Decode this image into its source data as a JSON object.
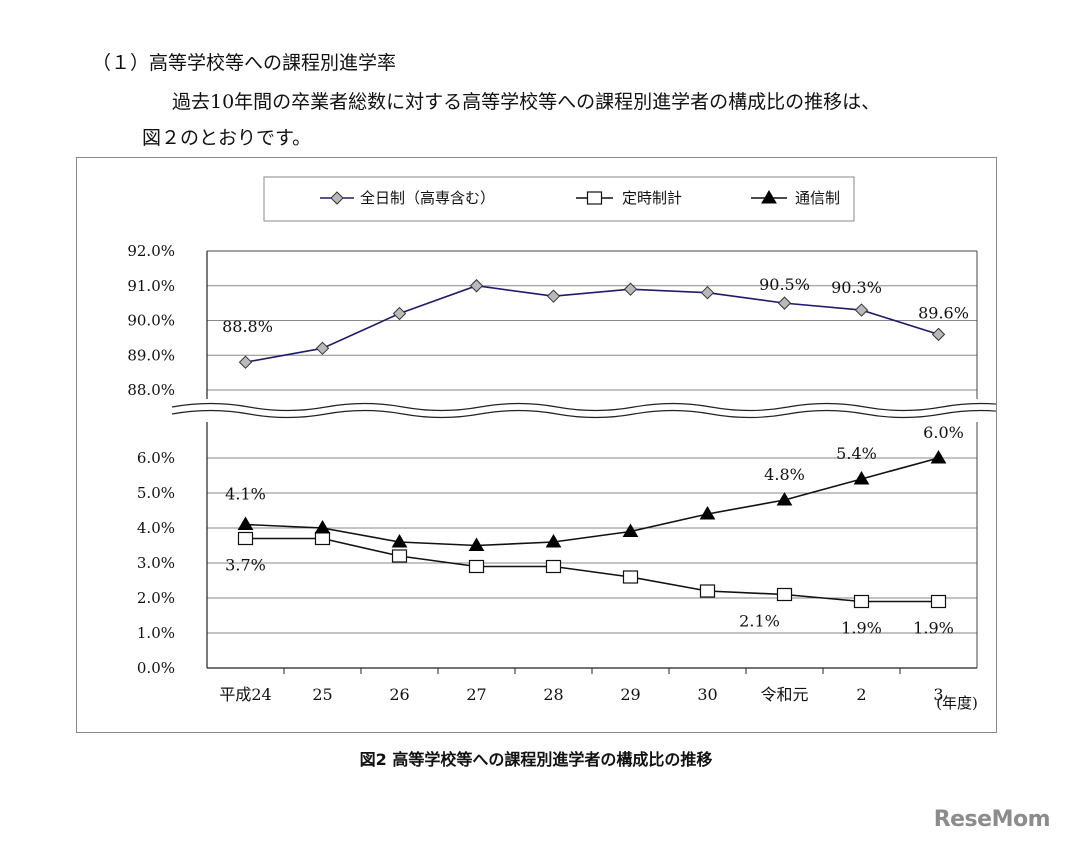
{
  "heading": "（１）高等学校等への課程別進学率",
  "intro_line1": "過去10年間の卒業者総数に対する高等学校等への課程別進学者の構成比の推移は、",
  "intro_line2": "図２のとおりです。",
  "caption": "図2  高等学校等への課程別進学者の構成比の推移",
  "watermark": "ReseMom",
  "chart_data": {
    "type": "line",
    "categories": [
      "平成24",
      "25",
      "26",
      "27",
      "28",
      "29",
      "30",
      "令和元",
      "2",
      "3"
    ],
    "x_unit_label": "(年度)",
    "axis_break": true,
    "upper_axis": {
      "ylim": [
        88.0,
        92.0
      ],
      "ticks": [
        "92.0%",
        "91.0%",
        "90.0%",
        "89.0%",
        "88.0%"
      ],
      "tick_values": [
        92,
        91,
        90,
        89,
        88
      ]
    },
    "lower_axis": {
      "ylim": [
        0.0,
        6.0
      ],
      "ticks": [
        "6.0%",
        "5.0%",
        "4.0%",
        "3.0%",
        "2.0%",
        "1.0%",
        "0.0%"
      ],
      "tick_values": [
        6,
        5,
        4,
        3,
        2,
        1,
        0
      ]
    },
    "grid": true,
    "legend_position": "top-center",
    "series": [
      {
        "name": "全日制（高専含む）",
        "axis": "upper",
        "marker": "diamond",
        "color": "#1f1a6e",
        "values": [
          88.8,
          89.2,
          90.2,
          91.0,
          90.7,
          90.9,
          90.8,
          90.5,
          90.3,
          89.6
        ],
        "data_labels": [
          {
            "index": 0,
            "text": "88.8%"
          },
          {
            "index": 7,
            "text": "90.5%"
          },
          {
            "index": 8,
            "text": "90.3%"
          },
          {
            "index": 9,
            "text": "89.6%"
          }
        ]
      },
      {
        "name": "定時制計",
        "axis": "lower",
        "marker": "square",
        "color": "#111111",
        "values": [
          3.7,
          3.7,
          3.2,
          2.9,
          2.9,
          2.6,
          2.2,
          2.1,
          1.9,
          1.9
        ],
        "data_labels": [
          {
            "index": 0,
            "text": "3.7%"
          },
          {
            "index": 7,
            "text": "2.1%"
          },
          {
            "index": 8,
            "text": "1.9%"
          },
          {
            "index": 9,
            "text": "1.9%"
          }
        ]
      },
      {
        "name": "通信制",
        "axis": "lower",
        "marker": "triangle",
        "color": "#111111",
        "values": [
          4.1,
          4.0,
          3.6,
          3.5,
          3.6,
          3.9,
          4.4,
          4.8,
          5.4,
          6.0
        ],
        "data_labels": [
          {
            "index": 0,
            "text": "4.1%"
          },
          {
            "index": 7,
            "text": "4.8%"
          },
          {
            "index": 8,
            "text": "5.4%"
          },
          {
            "index": 9,
            "text": "6.0%"
          }
        ]
      }
    ]
  }
}
